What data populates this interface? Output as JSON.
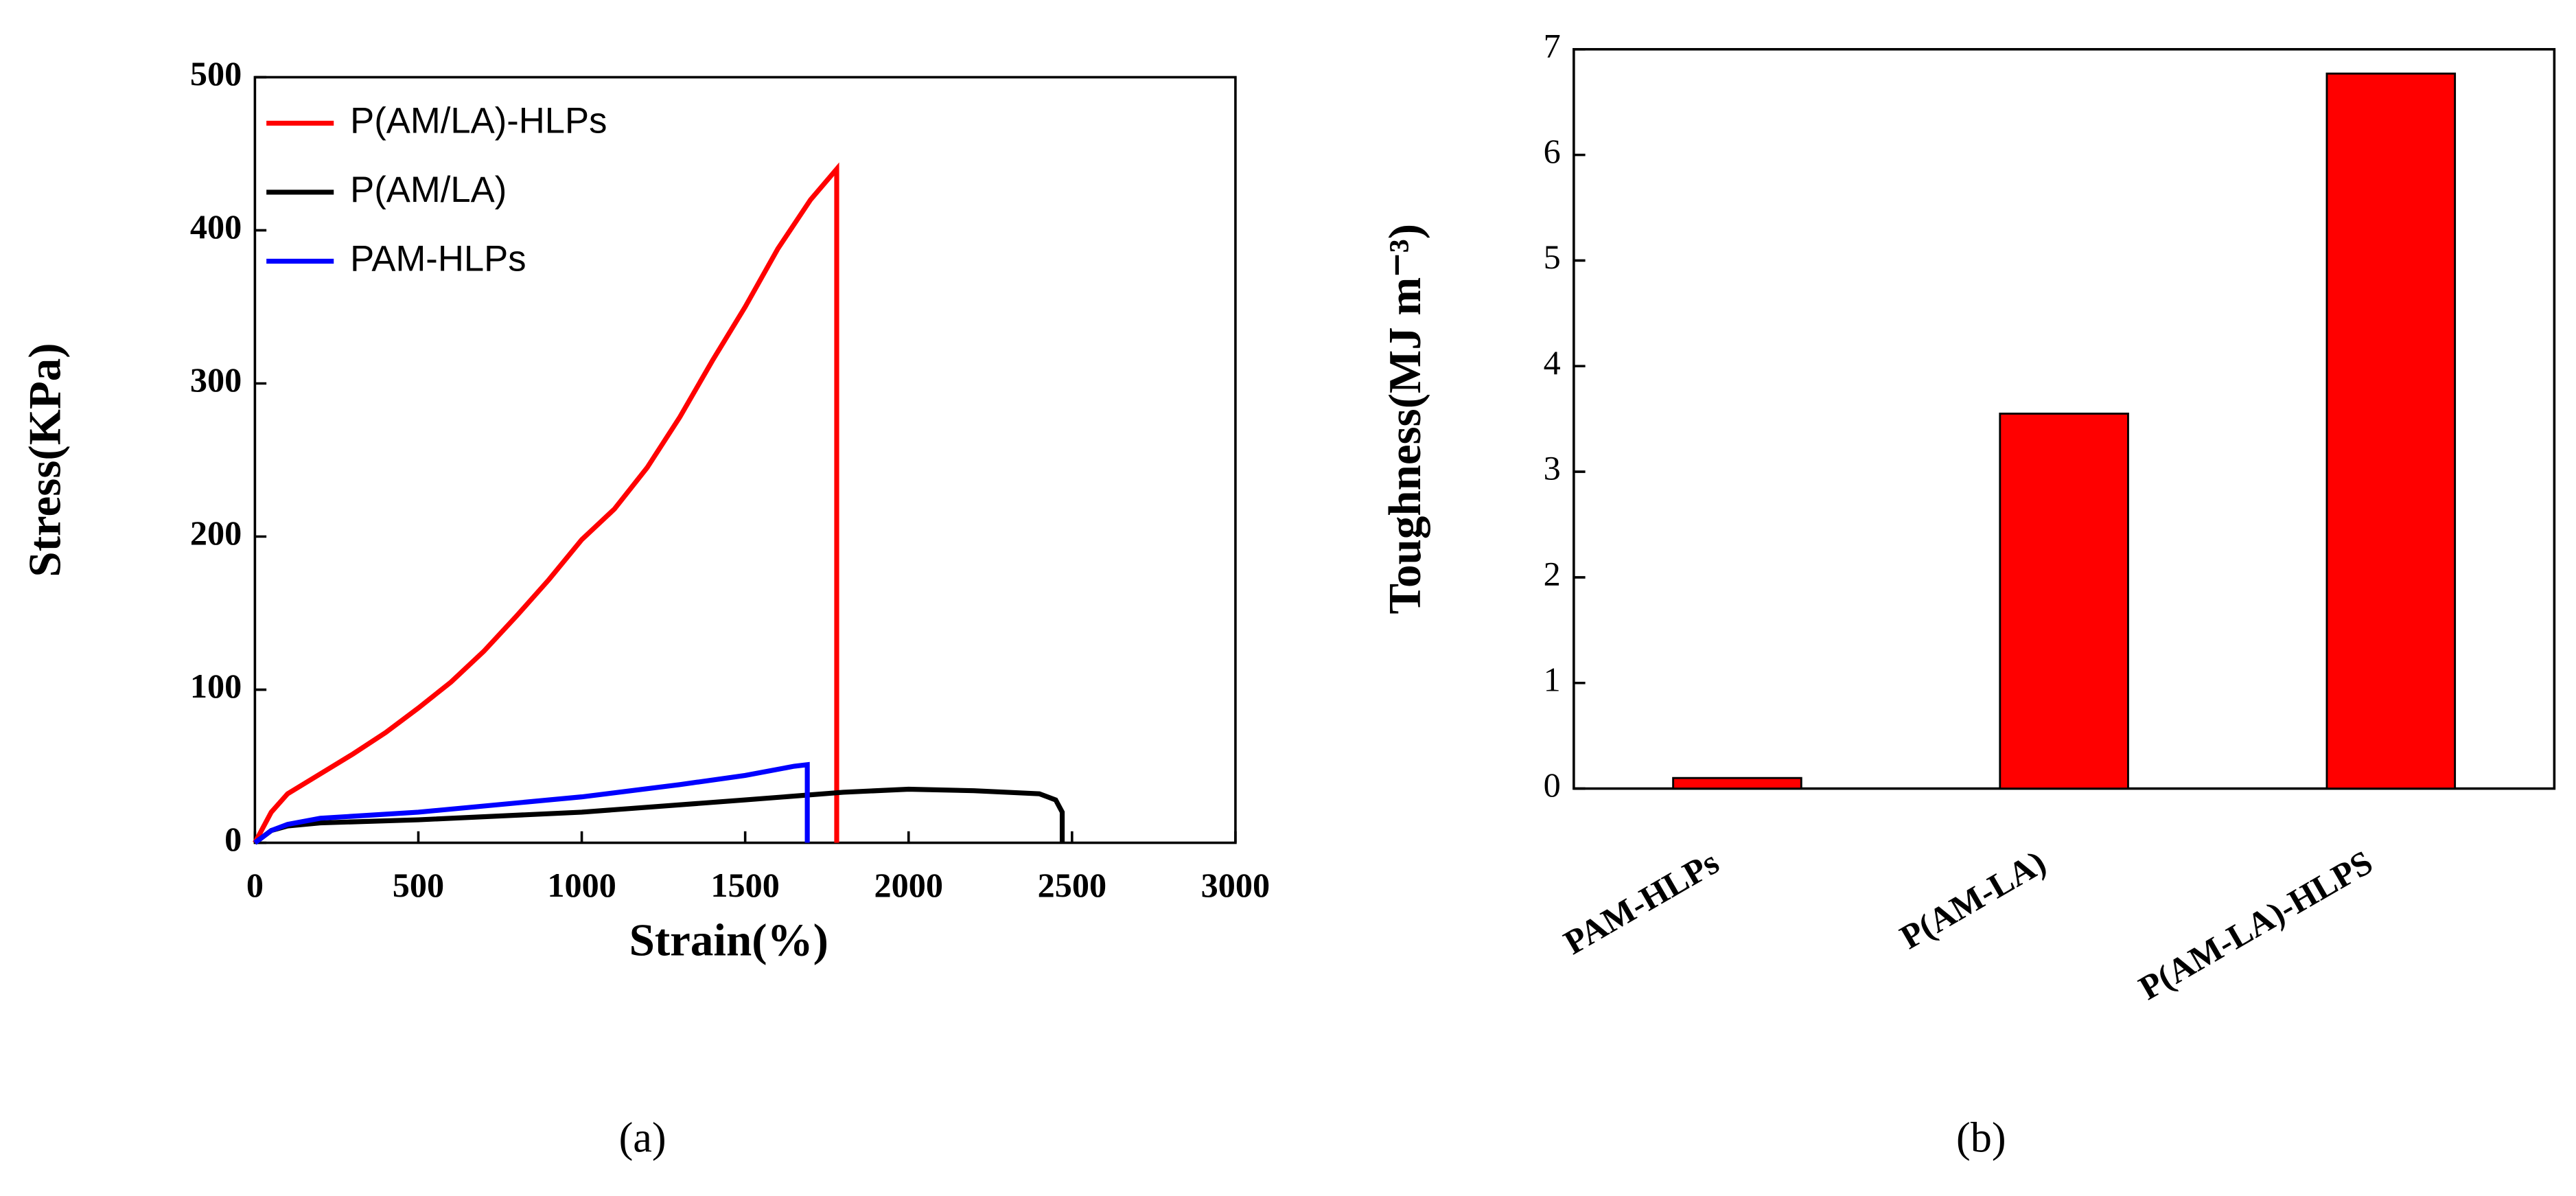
{
  "chart_data": [
    {
      "type": "line",
      "xlabel": "Strain(%)",
      "ylabel": "Stress(KPa)",
      "caption": "(a)",
      "xlim": [
        0,
        3000
      ],
      "xticks": [
        0,
        500,
        1000,
        1500,
        2000,
        2500,
        3000
      ],
      "ylim": [
        0,
        500
      ],
      "yticks": [
        0,
        100,
        200,
        300,
        400,
        500
      ],
      "legend": "upper left",
      "series": [
        {
          "name": "P(AM/LA)-HLPs",
          "color": "#ff0000",
          "x": [
            0,
            50,
            100,
            200,
            300,
            400,
            500,
            600,
            700,
            800,
            900,
            1000,
            1100,
            1200,
            1300,
            1400,
            1500,
            1600,
            1700,
            1780,
            1780
          ],
          "values": [
            0,
            20,
            32,
            45,
            58,
            72,
            88,
            105,
            125,
            148,
            172,
            198,
            218,
            245,
            278,
            315,
            350,
            388,
            420,
            440,
            0
          ]
        },
        {
          "name": "P(AM/LA)",
          "color": "#000000",
          "x": [
            0,
            50,
            100,
            200,
            500,
            1000,
            1500,
            1800,
            2000,
            2200,
            2400,
            2450,
            2470,
            2470
          ],
          "values": [
            0,
            8,
            11,
            13,
            15,
            20,
            28,
            33,
            35,
            34,
            32,
            28,
            20,
            0
          ]
        },
        {
          "name": "PAM-HLPs",
          "color": "#0000ff",
          "x": [
            0,
            50,
            100,
            200,
            500,
            1000,
            1300,
            1500,
            1650,
            1690,
            1690
          ],
          "values": [
            0,
            8,
            12,
            16,
            20,
            30,
            38,
            44,
            50,
            51,
            0
          ]
        }
      ]
    },
    {
      "type": "bar",
      "ylabel": "Toughness(MJ m⁻³)",
      "caption": "(b)",
      "categories": [
        "PAM-HLPs",
        "P(AM-LA)",
        "P(AM-LA)-HLPS"
      ],
      "values": [
        0.1,
        3.55,
        6.77
      ],
      "color": "#ff0000",
      "ylim": [
        0,
        7
      ],
      "yticks": [
        0,
        1,
        2,
        3,
        4,
        5,
        6,
        7
      ]
    }
  ]
}
